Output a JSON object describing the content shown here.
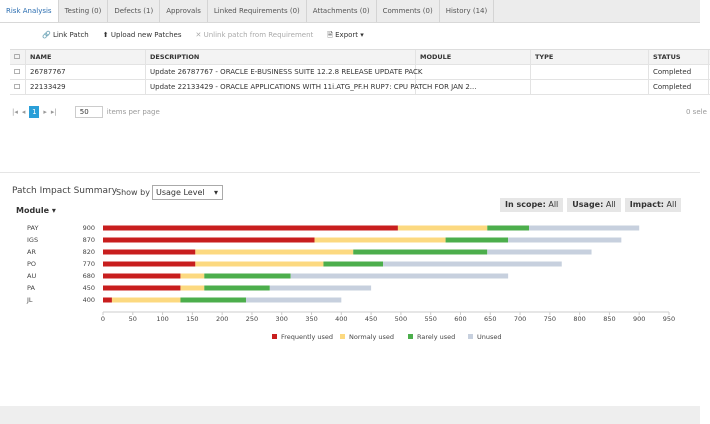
{
  "tabs": [
    "Risk Analysis",
    "Testing (0)",
    "Defects (1)",
    "Approvals",
    "Linked Requirements (0)",
    "Attachments (0)",
    "Comments (0)",
    "History (14)"
  ],
  "toolbar": {
    "link": "Link Patch",
    "upload": "Upload new Patches",
    "unlink": "Unlink  patch  from Requirement",
    "export": "Export"
  },
  "table": {
    "columns": [
      "NAME",
      "DESCRIPTION",
      "MODULE",
      "TYPE",
      "STATUS"
    ],
    "rows": [
      {
        "name": "26787767",
        "description": "Update 26787767 - ORACLE E-BUSINESS SUITE 12.2.8 RELEASE UPDATE PACK",
        "status": "Completed"
      },
      {
        "name": "22133429",
        "description": "Update 22133429 - ORACLE APPLICATIONS WITH 11i.ATG_PF.H RUP7: CPU PATCH FOR JAN 2...",
        "status": "Completed"
      }
    ]
  },
  "pagination": {
    "page": "1",
    "page_size": "50",
    "page_size_label": "items per page",
    "selected": "0 sele"
  },
  "summary": {
    "title": "Patch Impact Summary",
    "show_by_label": "Show by",
    "show_by_value": "Usage Level",
    "filters": [
      {
        "label": "In scope:",
        "value": "All"
      },
      {
        "label": "Usage:",
        "value": "All"
      },
      {
        "label": "Impact:",
        "value": "All"
      }
    ],
    "module_label": "Module"
  },
  "chart_data": {
    "type": "bar",
    "orientation": "horizontal",
    "stacked": true,
    "categories": [
      "PAY",
      "IGS",
      "AR",
      "PO",
      "AU",
      "PA",
      "JL"
    ],
    "totals": [
      900,
      870,
      820,
      770,
      680,
      450,
      400
    ],
    "series": [
      {
        "name": "Frequently used",
        "color": "#c81e1e",
        "values": [
          495,
          355,
          155,
          155,
          130,
          130,
          15
        ]
      },
      {
        "name": "Normaly used",
        "color": "#fcd980",
        "values": [
          150,
          220,
          265,
          215,
          40,
          40,
          115
        ]
      },
      {
        "name": "Rarely used",
        "color": "#4cae4c",
        "values": [
          70,
          105,
          225,
          100,
          145,
          110,
          110
        ]
      },
      {
        "name": "Unused",
        "color": "#c7d0de",
        "values": [
          185,
          190,
          175,
          300,
          365,
          170,
          160
        ]
      }
    ],
    "xlim": [
      0,
      950
    ],
    "xticks": [
      0,
      50,
      100,
      150,
      200,
      250,
      300,
      350,
      400,
      450,
      500,
      550,
      600,
      650,
      700,
      750,
      800,
      850,
      900,
      950
    ]
  }
}
